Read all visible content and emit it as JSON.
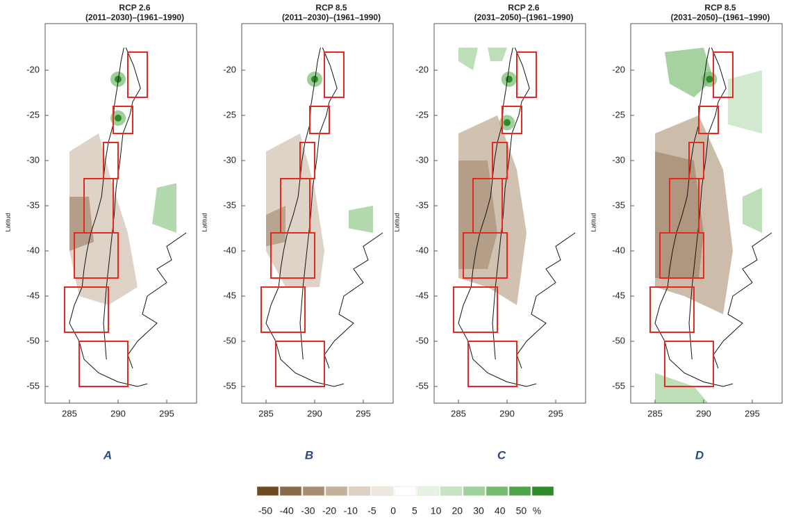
{
  "panels": [
    {
      "title": "RCP 2.6",
      "period": "(2011–2030)–(1961–1990)",
      "y_label": "Latitud",
      "yticks": [
        -20,
        -25,
        -30,
        -35,
        -40,
        -45,
        -50,
        -55
      ],
      "xticks": [
        285,
        290,
        295
      ],
      "letter": "A"
    },
    {
      "title": "RCP 8.5",
      "period": "(2011–2030)–(1961–1990)",
      "y_label": "Latitud",
      "yticks": [
        -20,
        -25,
        -30,
        -35,
        -40,
        -45,
        -50,
        -55
      ],
      "xticks": [
        285,
        290,
        295
      ],
      "letter": "B"
    },
    {
      "title": "RCP 2.6",
      "period": "(2031–2050)–(1961–1990)",
      "y_label": "Latitud",
      "yticks": [
        -20,
        -25,
        -30,
        -35,
        -40,
        -45,
        -50,
        -55
      ],
      "xticks": [
        285,
        290,
        295
      ],
      "letter": "C"
    },
    {
      "title": "RCP 8.5",
      "period": "(2031–2050)–(1961–1990)",
      "y_label": "Latitud",
      "yticks": [
        -20,
        -25,
        -30,
        -35,
        -40,
        -45,
        -50,
        -55
      ],
      "xticks": [
        285,
        290,
        295
      ],
      "letter": "D"
    }
  ],
  "colorbar": {
    "labels": [
      -50,
      -40,
      -30,
      -20,
      -10,
      -5,
      0,
      5,
      10,
      20,
      30,
      40,
      50
    ],
    "unit": "%",
    "colors": [
      "#6e4a24",
      "#8a6a48",
      "#a98d70",
      "#c5b09a",
      "#ddd0c2",
      "#efe8e0",
      "#ffffff",
      "#e6f2e4",
      "#c6e3c2",
      "#9fd19a",
      "#74bb6e",
      "#4ea448",
      "#2e8a2a"
    ]
  }
}
